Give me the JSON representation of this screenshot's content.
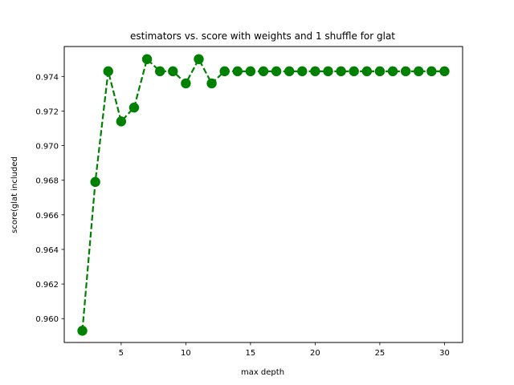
{
  "chart_data": {
    "type": "line",
    "title": "estimators vs. score with weights and 1 shuffle for glat",
    "xlabel": "max depth",
    "ylabel": "score(glat included",
    "xlim": [
      0.6,
      31.4
    ],
    "ylim": [
      0.95862,
      0.97573
    ],
    "xticks": [
      5,
      10,
      15,
      20,
      25,
      30
    ],
    "yticks": [
      0.96,
      0.962,
      0.964,
      0.966,
      0.968,
      0.97,
      0.972,
      0.974
    ],
    "ytick_labels": [
      "0.960",
      "0.962",
      "0.964",
      "0.966",
      "0.968",
      "0.970",
      "0.972",
      "0.974"
    ],
    "grid": false,
    "series": [
      {
        "color": "#008000",
        "line_style": "dashed",
        "marker": "circle",
        "x": [
          2,
          3,
          4,
          5,
          6,
          7,
          8,
          9,
          10,
          11,
          12,
          13,
          14,
          15,
          16,
          17,
          18,
          19,
          20,
          21,
          22,
          23,
          24,
          25,
          26,
          27,
          28,
          29,
          30
        ],
        "y": [
          0.9593,
          0.9679,
          0.9743,
          0.9714,
          0.9722,
          0.975,
          0.9743,
          0.9743,
          0.9736,
          0.975,
          0.9736,
          0.9743,
          0.9743,
          0.9743,
          0.9743,
          0.9743,
          0.9743,
          0.9743,
          0.9743,
          0.9743,
          0.9743,
          0.9743,
          0.9743,
          0.9743,
          0.9743,
          0.9743,
          0.9743,
          0.9743,
          0.9743
        ]
      }
    ]
  }
}
